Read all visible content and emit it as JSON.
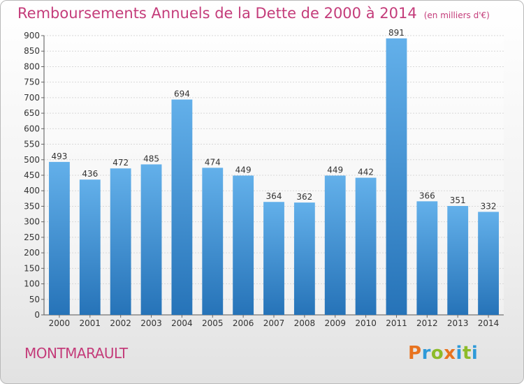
{
  "title": {
    "main": "Remboursements Annuels de la Dette de 2000 à 2014",
    "unit": "(en milliers d'€)"
  },
  "place": "MONTMARAULT",
  "logo": {
    "letters": [
      "P",
      "r",
      "o",
      "x",
      "i",
      "t",
      "i"
    ],
    "colors": [
      "#e8731f",
      "#2f9ad8",
      "#8dbb2a",
      "#e8731f",
      "#2f9ad8",
      "#8dbb2a",
      "#2f9ad8"
    ]
  },
  "chart_data": {
    "type": "bar",
    "categories": [
      "2000",
      "2001",
      "2002",
      "2003",
      "2004",
      "2005",
      "2006",
      "2007",
      "2008",
      "2009",
      "2010",
      "2011",
      "2012",
      "2013",
      "2014"
    ],
    "values": [
      493,
      436,
      472,
      485,
      694,
      474,
      449,
      364,
      362,
      449,
      442,
      891,
      366,
      351,
      332
    ],
    "ylim": [
      0,
      900
    ],
    "yticks": [
      0,
      50,
      100,
      150,
      200,
      250,
      300,
      350,
      400,
      450,
      500,
      550,
      600,
      650,
      700,
      750,
      800,
      850,
      900
    ],
    "grid": true,
    "bar_color_top": "#63b0ea",
    "bar_color_bottom": "#2673b8"
  }
}
